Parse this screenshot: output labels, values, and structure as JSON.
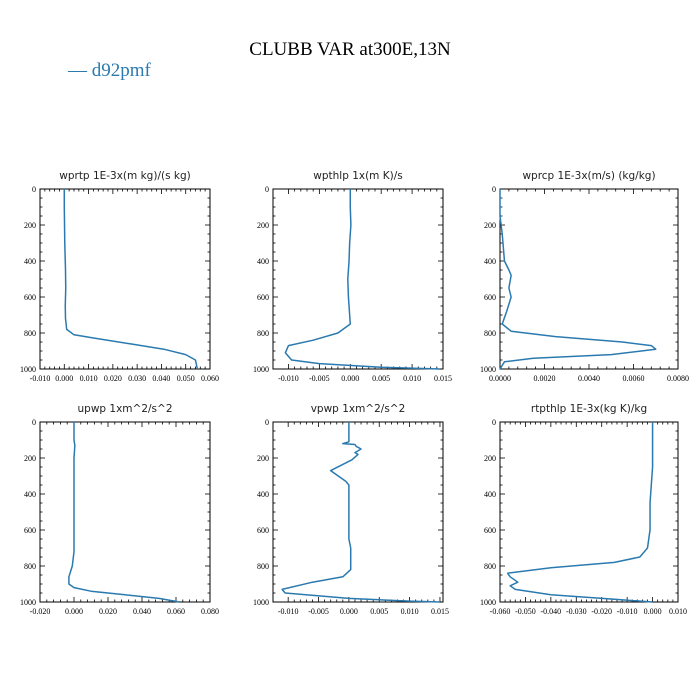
{
  "figure": {
    "title": "CLUBB VAR at300E,13N",
    "legend": {
      "label": "— d92pmf",
      "color": "#2a7ab0",
      "placement": "top-left"
    }
  },
  "chart_data": [
    {
      "type": "line",
      "title": "wprtp  1E-3x(m kg)/(s kg)",
      "xlim": [
        -0.01,
        0.06
      ],
      "ylim": [
        1000,
        0
      ],
      "xticks": [
        -0.01,
        0.0,
        0.01,
        0.02,
        0.03,
        0.04,
        0.05,
        0.06
      ],
      "xtick_labels": [
        "-0.010",
        "0.000",
        "0.010",
        "0.020",
        "0.030",
        "0.040",
        "0.050",
        "0.060"
      ],
      "yticks": [
        0,
        200,
        400,
        600,
        800,
        1000
      ],
      "ytick_labels": [
        "0",
        "200",
        "400",
        "600",
        "800",
        "1000"
      ],
      "series": [
        {
          "name": "d92pmf",
          "color": "#2a7ab0",
          "x": [
            0.0,
            0.0,
            0.0002,
            0.0005,
            0.0006,
            0.0004,
            0.0005,
            0.001,
            0.004,
            0.013,
            0.027,
            0.041,
            0.05,
            0.054,
            0.0548
          ],
          "y": [
            0,
            100,
            300,
            450,
            550,
            650,
            720,
            780,
            810,
            830,
            860,
            890,
            920,
            950,
            1000
          ]
        }
      ]
    },
    {
      "type": "line",
      "title": "wpthlp  1x(m K)/s",
      "xlim": [
        -0.0125,
        0.015
      ],
      "ylim": [
        1000,
        0
      ],
      "xticks": [
        -0.01,
        -0.005,
        0.0,
        0.005,
        0.01,
        0.015
      ],
      "xtick_labels": [
        "-0.010",
        "-0.005",
        "0.000",
        "0.005",
        "0.010",
        "0.015"
      ],
      "yticks": [
        0,
        200,
        400,
        600,
        800,
        1000
      ],
      "ytick_labels": [
        "0",
        "200",
        "400",
        "600",
        "800",
        "1000"
      ],
      "series": [
        {
          "name": "d92pmf",
          "color": "#2a7ab0",
          "x": [
            0.0,
            0.0,
            0.0001,
            -0.0001,
            -0.0002,
            -0.0004,
            -0.0003,
            0.0,
            -0.002,
            -0.006,
            -0.01,
            -0.0105,
            -0.0095,
            -0.005,
            0.005,
            0.0145
          ],
          "y": [
            0,
            100,
            200,
            300,
            400,
            500,
            600,
            750,
            800,
            840,
            870,
            910,
            950,
            970,
            990,
            1000
          ]
        }
      ]
    },
    {
      "type": "line",
      "title": "wprcp  1E-3x(m/s) (kg/kg)",
      "xlim": [
        0.0,
        0.008
      ],
      "ylim": [
        1000,
        0
      ],
      "xticks": [
        0.0,
        0.002,
        0.004,
        0.006,
        0.008
      ],
      "xtick_labels": [
        "0.0000",
        "0.0020",
        "0.0040",
        "0.0060",
        "0.0080"
      ],
      "yticks": [
        0,
        200,
        400,
        600,
        800,
        1000
      ],
      "ytick_labels": [
        "0",
        "200",
        "400",
        "600",
        "800",
        "1000"
      ],
      "series": [
        {
          "name": "d92pmf",
          "color": "#2a7ab0",
          "x": [
            0.0,
            0.0,
            0.0001,
            0.0002,
            0.0004,
            0.0005,
            0.0004,
            0.0005,
            0.0003,
            0.0001,
            0.0005,
            0.0025,
            0.0055,
            0.0068,
            0.007,
            0.005,
            0.0015,
            0.0002,
            0.0
          ],
          "y": [
            0,
            150,
            250,
            400,
            450,
            480,
            550,
            600,
            680,
            750,
            790,
            820,
            850,
            870,
            890,
            920,
            940,
            960,
            1000
          ]
        }
      ]
    },
    {
      "type": "line",
      "title": "upwp  1xm^2/s^2",
      "xlim": [
        -0.02,
        0.08
      ],
      "ylim": [
        1000,
        0
      ],
      "xticks": [
        -0.02,
        0.0,
        0.02,
        0.04,
        0.06,
        0.08
      ],
      "xtick_labels": [
        "-0.020",
        "0.000",
        "0.020",
        "0.040",
        "0.060",
        "0.080"
      ],
      "yticks": [
        0,
        200,
        400,
        600,
        800,
        1000
      ],
      "ytick_labels": [
        "0",
        "200",
        "400",
        "600",
        "800",
        "1000"
      ],
      "series": [
        {
          "name": "d92pmf",
          "color": "#2a7ab0",
          "x": [
            0.0,
            0.0,
            0.0005,
            0.0,
            0.0,
            0.0,
            0.0,
            -0.001,
            -0.003,
            -0.003,
            0.0,
            0.01,
            0.03,
            0.05,
            0.062
          ],
          "y": [
            0,
            100,
            130,
            200,
            400,
            600,
            720,
            800,
            860,
            900,
            920,
            940,
            960,
            980,
            1000
          ]
        }
      ]
    },
    {
      "type": "line",
      "title": "vpwp  1xm^2/s^2",
      "xlim": [
        -0.0125,
        0.0155
      ],
      "ylim": [
        1000,
        0
      ],
      "xticks": [
        -0.01,
        -0.005,
        0.0,
        0.005,
        0.01,
        0.015
      ],
      "xtick_labels": [
        "-0.010",
        "-0.005",
        "0.000",
        "0.005",
        "0.010",
        "0.015"
      ],
      "yticks": [
        0,
        200,
        400,
        600,
        800,
        1000
      ],
      "ytick_labels": [
        "0",
        "200",
        "400",
        "600",
        "800",
        "1000"
      ],
      "series": [
        {
          "name": "d92pmf",
          "color": "#2a7ab0",
          "x": [
            0.0,
            0.0,
            -0.001,
            0.001,
            0.0012,
            0.002,
            0.001,
            0.0015,
            0.0005,
            -0.003,
            -0.0005,
            0.0,
            0.0,
            0.0,
            0.0003,
            0.0003,
            -0.001,
            -0.006,
            -0.011,
            -0.0105,
            0.0,
            0.01,
            0.015
          ],
          "y": [
            0,
            110,
            120,
            125,
            135,
            150,
            170,
            180,
            210,
            270,
            330,
            350,
            450,
            650,
            700,
            820,
            860,
            890,
            930,
            950,
            980,
            995,
            1000
          ]
        }
      ]
    },
    {
      "type": "line",
      "title": "rtpthlp  1E-3x(kg K)/kg",
      "xlim": [
        -0.06,
        0.01
      ],
      "ylim": [
        1000,
        0
      ],
      "xticks": [
        -0.06,
        -0.05,
        -0.04,
        -0.03,
        -0.02,
        -0.01,
        0.0,
        0.01
      ],
      "xtick_labels": [
        "-0.060",
        "-0.050",
        "-0.040",
        "-0.030",
        "-0.020",
        "-0.010",
        "0.000",
        "0.010"
      ],
      "yticks": [
        0,
        200,
        400,
        600,
        800,
        1000
      ],
      "ytick_labels": [
        "0",
        "200",
        "400",
        "600",
        "800",
        "1000"
      ],
      "series": [
        {
          "name": "d92pmf",
          "color": "#2a7ab0",
          "x": [
            0.0,
            0.0,
            -0.0005,
            -0.001,
            -0.001,
            -0.002,
            -0.005,
            -0.015,
            -0.04,
            -0.057,
            -0.056,
            -0.053,
            -0.056,
            -0.054,
            -0.04,
            -0.015,
            0.0
          ],
          "y": [
            0,
            250,
            350,
            450,
            600,
            700,
            750,
            780,
            810,
            840,
            860,
            890,
            910,
            930,
            960,
            985,
            1000
          ]
        }
      ]
    }
  ]
}
